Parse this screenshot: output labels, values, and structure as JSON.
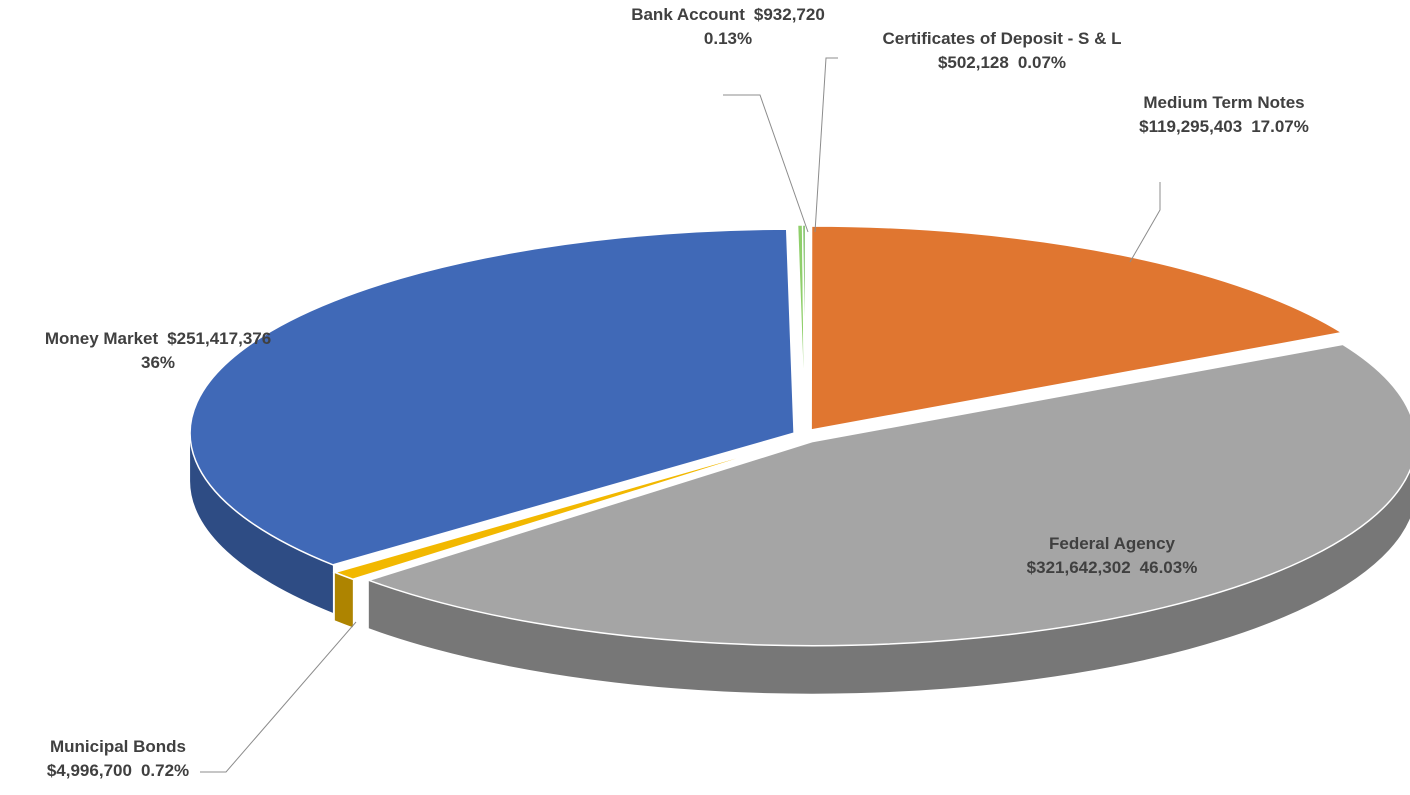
{
  "chart_data": {
    "type": "pie3d",
    "categories": [
      "Bank Account",
      "Certificates of Deposit - S & L",
      "Medium Term Notes",
      "Federal Agency",
      "Municipal Bonds",
      "Money Market"
    ],
    "values": [
      932720,
      502128,
      119295403,
      321642302,
      4996700,
      251417376
    ],
    "value_labels": [
      "$932,720",
      "$502,128",
      "$119,295,403",
      "$321,642,302",
      "$4,996,700",
      "$251,417,376"
    ],
    "percent_labels": [
      "0.13%",
      "0.07%",
      "17.07%",
      "46.03%",
      "0.72%",
      "36%"
    ],
    "colors": [
      "#8fcf6a",
      "#4ea72e",
      "#e07630",
      "#a5a5a5",
      "#f2b800",
      "#4069b7"
    ]
  }
}
